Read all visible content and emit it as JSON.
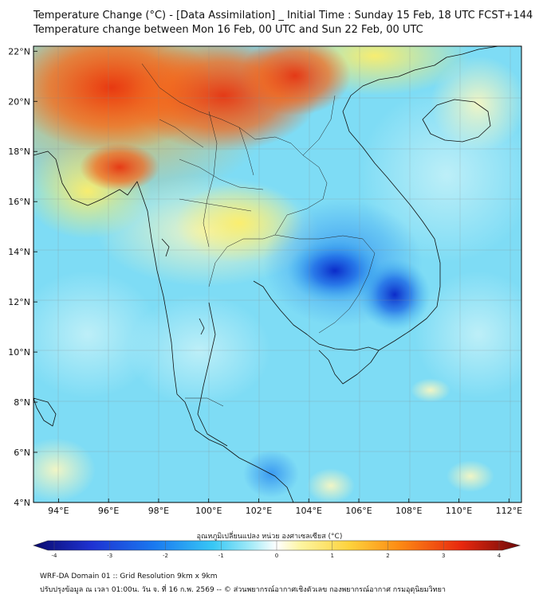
{
  "header": {
    "title_line1": "Temperature Change (°C) - [Data Assimilation] _ Initial Time : Sunday 15 Feb, 18 UTC FCST+144",
    "title_line2": "Temperature change between Mon 16 Feb, 00 UTC and Sun 22 Feb, 00 UTC"
  },
  "map": {
    "lat_labels": [
      "22°N",
      "20°N",
      "18°N",
      "16°N",
      "14°N",
      "12°N",
      "10°N",
      "8°N",
      "6°N",
      "4°N"
    ],
    "lon_labels": [
      "94°E",
      "96°E",
      "98°E",
      "100°E",
      "102°E",
      "104°E",
      "106°E",
      "108°E",
      "110°E",
      "112°E"
    ],
    "lat_values": [
      22,
      20,
      18,
      16,
      14,
      12,
      10,
      8,
      6,
      4
    ],
    "lon_values": [
      94,
      96,
      98,
      100,
      102,
      104,
      106,
      108,
      110,
      112
    ],
    "extent": {
      "lon_min": 93.0,
      "lon_max": 112.5,
      "lat_min": 4.0,
      "lat_max": 22.2
    }
  },
  "colorbar": {
    "title": "อุณหภูมิเปลี่ยนแปลง หน่วย องศาเซลเซียส (°C)",
    "tick_labels": [
      "-4",
      "-3",
      "-2",
      "-1",
      "0",
      "1",
      "2",
      "3",
      "4"
    ],
    "tick_values": [
      -4,
      -3,
      -2,
      -1,
      0,
      1,
      2,
      3,
      4
    ],
    "range": [
      -4,
      4
    ],
    "colors": [
      "#0a0a6e",
      "#1e32d2",
      "#1a7af0",
      "#38c8f5",
      "#a8ecf8",
      "#ffffff",
      "#fdf5a0",
      "#fdd23c",
      "#fd8c14",
      "#e8280e",
      "#6e0a0a"
    ]
  },
  "footer": {
    "line1": "WRF-DA Domain 01 :: Grid Resolution 9km x 9km",
    "line2": "ปรับปรุงข้อมูล ณ เวลา 01:00น. วัน จ. ที่ 16 ก.พ. 2569 -- © ส่วนพยากรณ์อากาศเชิงตัวเลข กองพยากรณ์อากาศ กรมอุตุนิยมวิทยา"
  }
}
